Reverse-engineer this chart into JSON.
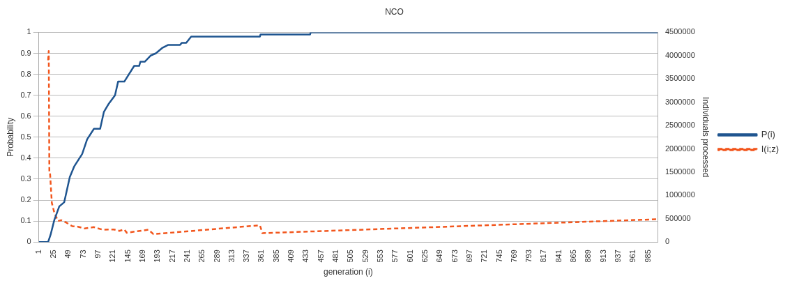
{
  "chart_data": {
    "type": "line",
    "title": "NCO",
    "xlabel": "generation (i)",
    "ylabel": "Probability",
    "y2label": "Individuals processed",
    "xlim": [
      1,
      1000
    ],
    "xticks": [
      1,
      25,
      49,
      73,
      97,
      121,
      145,
      169,
      193,
      217,
      241,
      265,
      289,
      313,
      337,
      361,
      385,
      409,
      433,
      457,
      481,
      505,
      529,
      553,
      577,
      601,
      625,
      649,
      673,
      697,
      721,
      745,
      769,
      793,
      817,
      841,
      865,
      889,
      913,
      937,
      961,
      985
    ],
    "ylim": [
      0,
      1
    ],
    "yticks": [
      0,
      0.1,
      0.2,
      0.3,
      0.4,
      0.5,
      0.6,
      0.7,
      0.8,
      0.9,
      1
    ],
    "y2lim": [
      0,
      4500000
    ],
    "y2ticks": [
      0,
      500000,
      1000000,
      1500000,
      2000000,
      2500000,
      3000000,
      3500000,
      4000000,
      4500000
    ],
    "grid": "y",
    "legend": "right",
    "marker": "none",
    "series": [
      {
        "name": "P(i)",
        "color": "#1f5590",
        "line_style": "solid",
        "x": [
          1,
          16,
          20,
          26,
          34,
          42,
          51,
          58,
          71,
          79,
          90,
          100,
          106,
          114,
          124,
          129,
          139,
          155,
          163,
          165,
          172,
          182,
          190,
          200,
          210,
          229,
          232,
          239,
          247,
          358,
          359,
          439,
          440,
          1000
        ],
        "values": [
          0,
          0,
          0.035,
          0.105,
          0.17,
          0.19,
          0.31,
          0.36,
          0.42,
          0.49,
          0.54,
          0.54,
          0.62,
          0.66,
          0.7,
          0.765,
          0.765,
          0.84,
          0.84,
          0.86,
          0.86,
          0.89,
          0.9,
          0.925,
          0.94,
          0.94,
          0.95,
          0.95,
          0.98,
          0.98,
          0.99,
          0.99,
          1,
          1
        ]
      },
      {
        "name": "I(i;z)",
        "color": "#f2561d",
        "line_style": "dashed",
        "axis": "y2",
        "x": [
          16,
          17,
          18,
          19,
          22,
          26,
          32,
          37,
          45,
          55,
          64,
          75,
          90,
          104,
          122,
          131,
          139,
          143,
          178,
          186,
          358,
          362,
          1000
        ],
        "values": [
          3900000,
          4100000,
          1500000,
          1500000,
          840000,
          630000,
          450000,
          470000,
          420000,
          340000,
          330000,
          290000,
          320000,
          265000,
          270000,
          240000,
          270000,
          200000,
          265000,
          170000,
          360000,
          190000,
          490000
        ]
      }
    ]
  }
}
